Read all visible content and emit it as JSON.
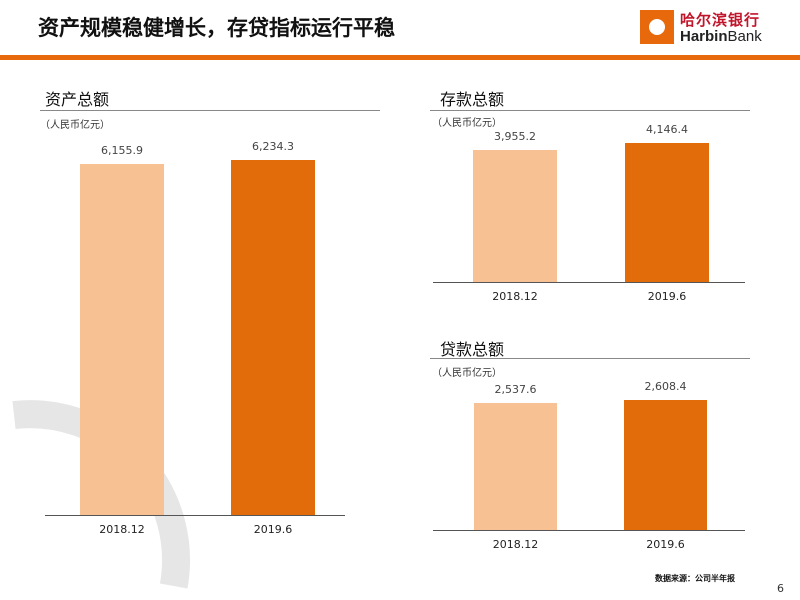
{
  "header": {
    "title": "资产规模稳健增长，存贷指标运行平稳"
  },
  "logo": {
    "cn": "哈尔滨银行",
    "en_bold": "Harbin",
    "en_rest": "Bank"
  },
  "colors": {
    "accent": "#e8680c",
    "light_bar": "#f8c193",
    "dark_bar": "#e36c0a"
  },
  "chart_data": [
    {
      "type": "bar",
      "title": "资产总额",
      "unit": "（人民币亿元）",
      "categories": [
        "2018.12",
        "2019.6"
      ],
      "values": [
        6155.9,
        6234.3
      ],
      "value_labels": [
        "6,155.9",
        "6,234.3"
      ]
    },
    {
      "type": "bar",
      "title": "存款总额",
      "unit": "（人民币亿元）",
      "categories": [
        "2018.12",
        "2019.6"
      ],
      "values": [
        3955.2,
        4146.4
      ],
      "value_labels": [
        "3,955.2",
        "4,146.4"
      ]
    },
    {
      "type": "bar",
      "title": "贷款总额",
      "unit": "（人民币亿元）",
      "categories": [
        "2018.12",
        "2019.6"
      ],
      "values": [
        2537.6,
        2608.4
      ],
      "value_labels": [
        "2,537.6",
        "2,608.4"
      ]
    }
  ],
  "footer": {
    "source": "数据来源：公司半年报",
    "page": "6"
  }
}
